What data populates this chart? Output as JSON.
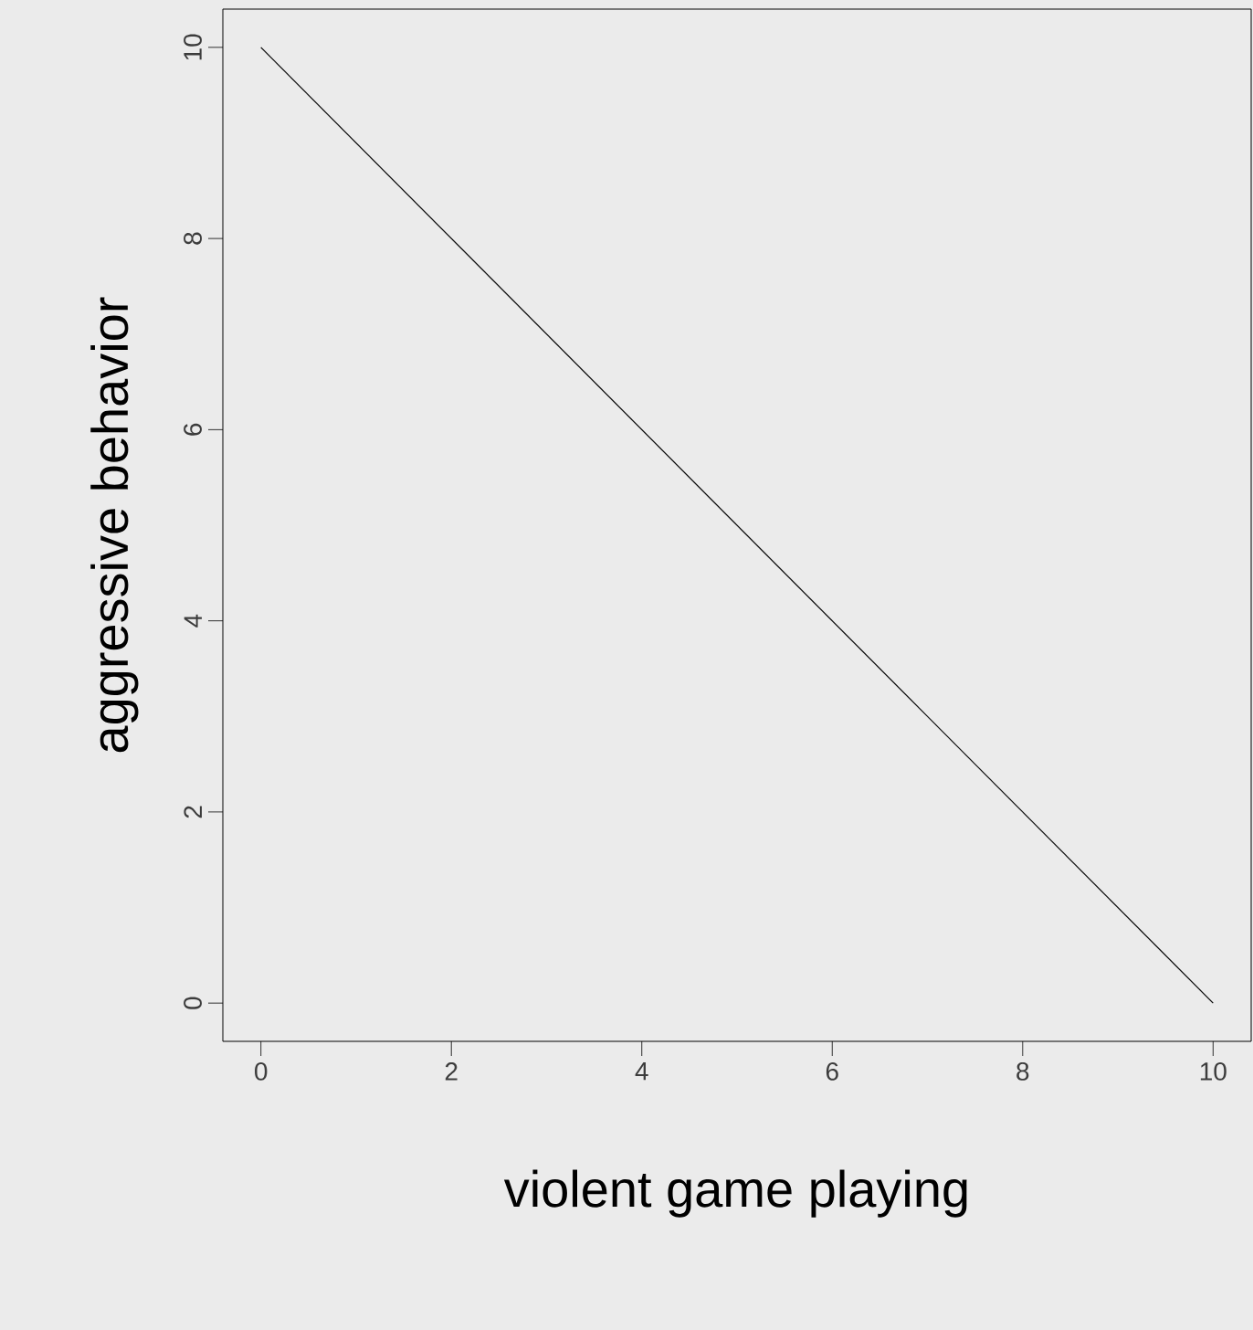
{
  "chart_data": {
    "type": "line",
    "xlabel": "violent game playing",
    "ylabel": "aggressive behavior",
    "x": [
      0,
      10
    ],
    "series": [
      {
        "color": "#000000",
        "values": [
          10,
          0
        ]
      }
    ],
    "xlim": [
      -0.4,
      10.4
    ],
    "ylim": [
      -0.4,
      10.4
    ],
    "xticks": [
      0,
      2,
      4,
      6,
      8,
      10
    ],
    "yticks": [
      0,
      2,
      4,
      6,
      8,
      10
    ]
  }
}
